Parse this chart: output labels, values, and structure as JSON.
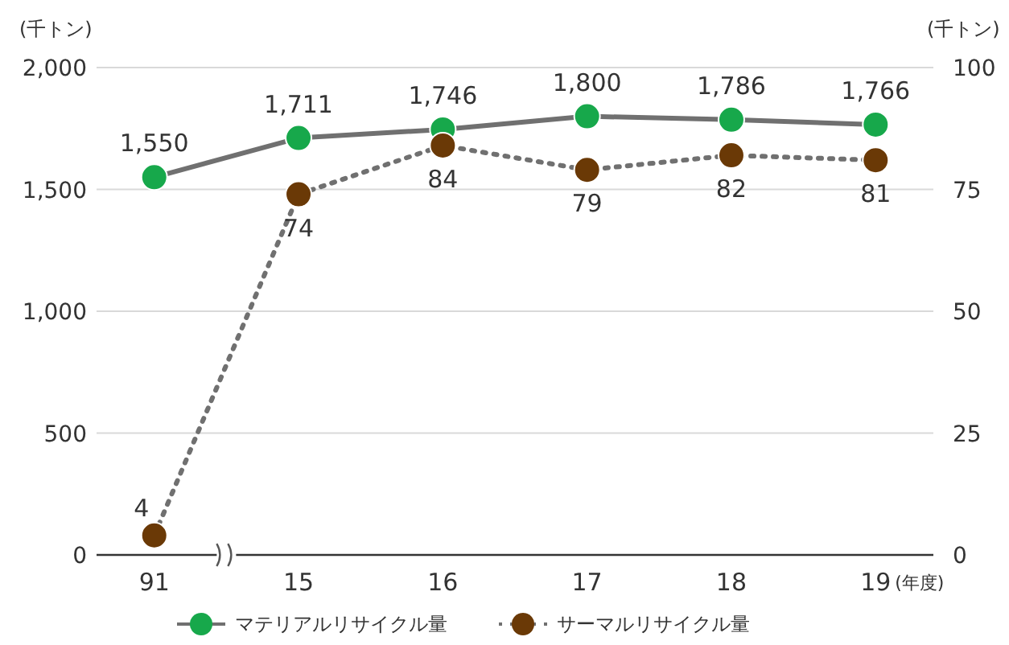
{
  "chart_data": {
    "type": "line",
    "categories": [
      "91",
      "15",
      "16",
      "17",
      "18",
      "19"
    ],
    "xlabel": "(年度)",
    "ylabel": "(千トン)",
    "y2label": "(千トン)",
    "ylim": [
      0,
      2000
    ],
    "yticks": [
      0,
      {
        "value": 500,
        "label": "500"
      },
      {
        "value": 1000,
        "label": "1,000"
      },
      {
        "value": 1500,
        "label": "1,500"
      },
      {
        "value": 2000,
        "label": "2,000"
      }
    ],
    "y2lim": [
      0,
      100
    ],
    "y2ticks": [
      0,
      25,
      50,
      75,
      100
    ],
    "grid": "y",
    "legend": "bottom",
    "marker": "circle",
    "data_labels": true,
    "series": [
      {
        "name": "マテリアルリサイクル量",
        "color": "#17a84b",
        "values": [
          1550,
          1711,
          1746,
          1800,
          1786,
          1766
        ],
        "value_labels": [
          "1,550",
          "1,711",
          "1,746",
          "1,800",
          "1,786",
          "1,766"
        ],
        "line_style": "solid"
      },
      {
        "name": "サーマルリサイクル量",
        "color": "#6a3906",
        "values": [
          4,
          74,
          84,
          79,
          82,
          81
        ],
        "axis": "y2",
        "line_style": "dotted"
      }
    ]
  }
}
